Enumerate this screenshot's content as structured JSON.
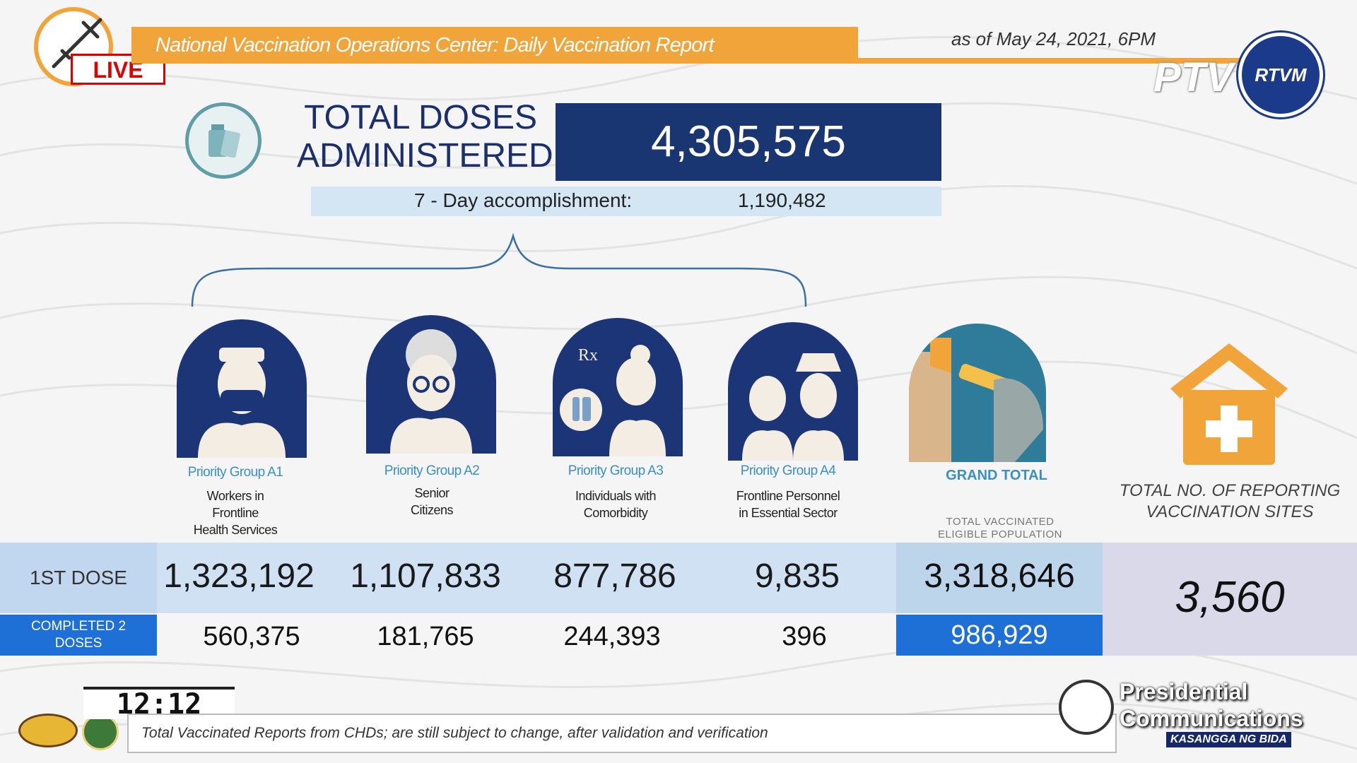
{
  "header": {
    "title": "National Vaccination Operations Center: Daily Vaccination Report",
    "as_of": "as of May 24, 2021, 6PM",
    "live_label": "LIVE",
    "ptv_logo": "PTV",
    "rtvm_logo": "RTVM"
  },
  "total": {
    "label_line1": "TOTAL DOSES",
    "label_line2": "ADMINISTERED",
    "value": "4,305,575",
    "seven_day_label": "7 - Day accomplishment:",
    "seven_day_value": "1,190,482"
  },
  "groups": [
    {
      "title": "Priority Group A1",
      "desc_line1": "Workers in",
      "desc_line2": "Frontline",
      "desc_line3": "Health Services",
      "first_dose": "1,323,192",
      "completed": "560,375",
      "icon": "health-worker-icon"
    },
    {
      "title": "Priority Group A2",
      "desc_line1": "Senior",
      "desc_line2": "Citizens",
      "desc_line3": "",
      "first_dose": "1,107,833",
      "completed": "181,765",
      "icon": "senior-citizen-icon"
    },
    {
      "title": "Priority Group A3",
      "desc_line1": "Individuals with",
      "desc_line2": "Comorbidity",
      "desc_line3": "",
      "first_dose": "877,786",
      "completed": "244,393",
      "icon": "comorbidity-icon"
    },
    {
      "title": "Priority Group A4",
      "desc_line1": "Frontline Personnel",
      "desc_line2": "in Essential Sector",
      "desc_line3": "",
      "first_dose": "9,835",
      "completed": "396",
      "icon": "frontline-personnel-icon"
    }
  ],
  "rows": {
    "first_dose_label": "1ST DOSE",
    "completed_label_line1": "COMPLETED 2",
    "completed_label_line2": "DOSES"
  },
  "grand_total": {
    "title": "GRAND TOTAL",
    "sub_line1": "TOTAL VACCINATED",
    "sub_line2": "ELIGIBLE POPULATION",
    "first_dose": "3,318,646",
    "completed": "986,929"
  },
  "sites": {
    "title_line1": "TOTAL NO. OF REPORTING",
    "title_line2": "VACCINATION SITES",
    "value": "3,560"
  },
  "footer": {
    "clock": "12:12",
    "ticker": "Total Vaccinated Reports from CHDs; are still subject to change, after validation and verification",
    "pco_line1": "Presidential",
    "pco_line2": "Communications",
    "tagline": "KASANGGA NG BIDA"
  },
  "colors": {
    "accent_orange": "#f0a43a",
    "navy": "#1a3672",
    "blue": "#1e6fd6",
    "light_blue": "#cfe1f3"
  }
}
